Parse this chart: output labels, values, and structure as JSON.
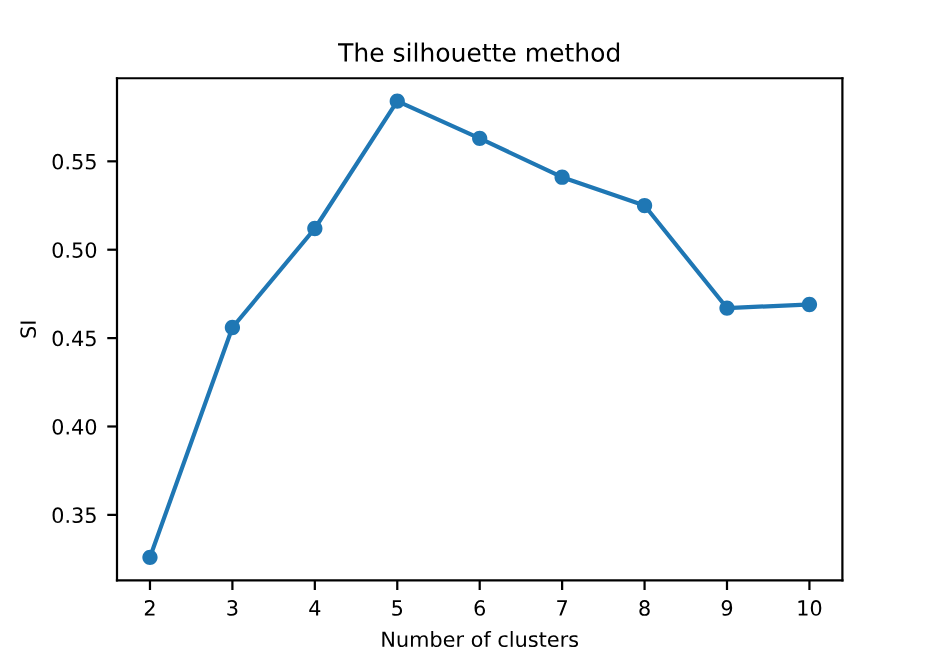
{
  "chart_data": {
    "type": "line",
    "title": "The silhouette method",
    "xlabel": "Number of clusters",
    "ylabel": "SI",
    "x": [
      2,
      3,
      4,
      5,
      6,
      7,
      8,
      9,
      10
    ],
    "series": [
      {
        "color": "#1f77b4",
        "values": [
          0.326,
          0.456,
          0.512,
          0.584,
          0.563,
          0.541,
          0.525,
          0.467,
          0.469
        ]
      }
    ],
    "xlim": [
      1.6,
      10.4
    ],
    "ylim": [
      0.313,
      0.597
    ],
    "xticks": [
      2,
      3,
      4,
      5,
      6,
      7,
      8,
      9,
      10
    ],
    "yticks": [
      0.35,
      {
        "value": 0.4,
        "label": "0.40"
      },
      0.45,
      {
        "value": 0.5,
        "label": "0.50"
      },
      0.55
    ],
    "marker": "circle",
    "grid": false,
    "legend": false
  }
}
